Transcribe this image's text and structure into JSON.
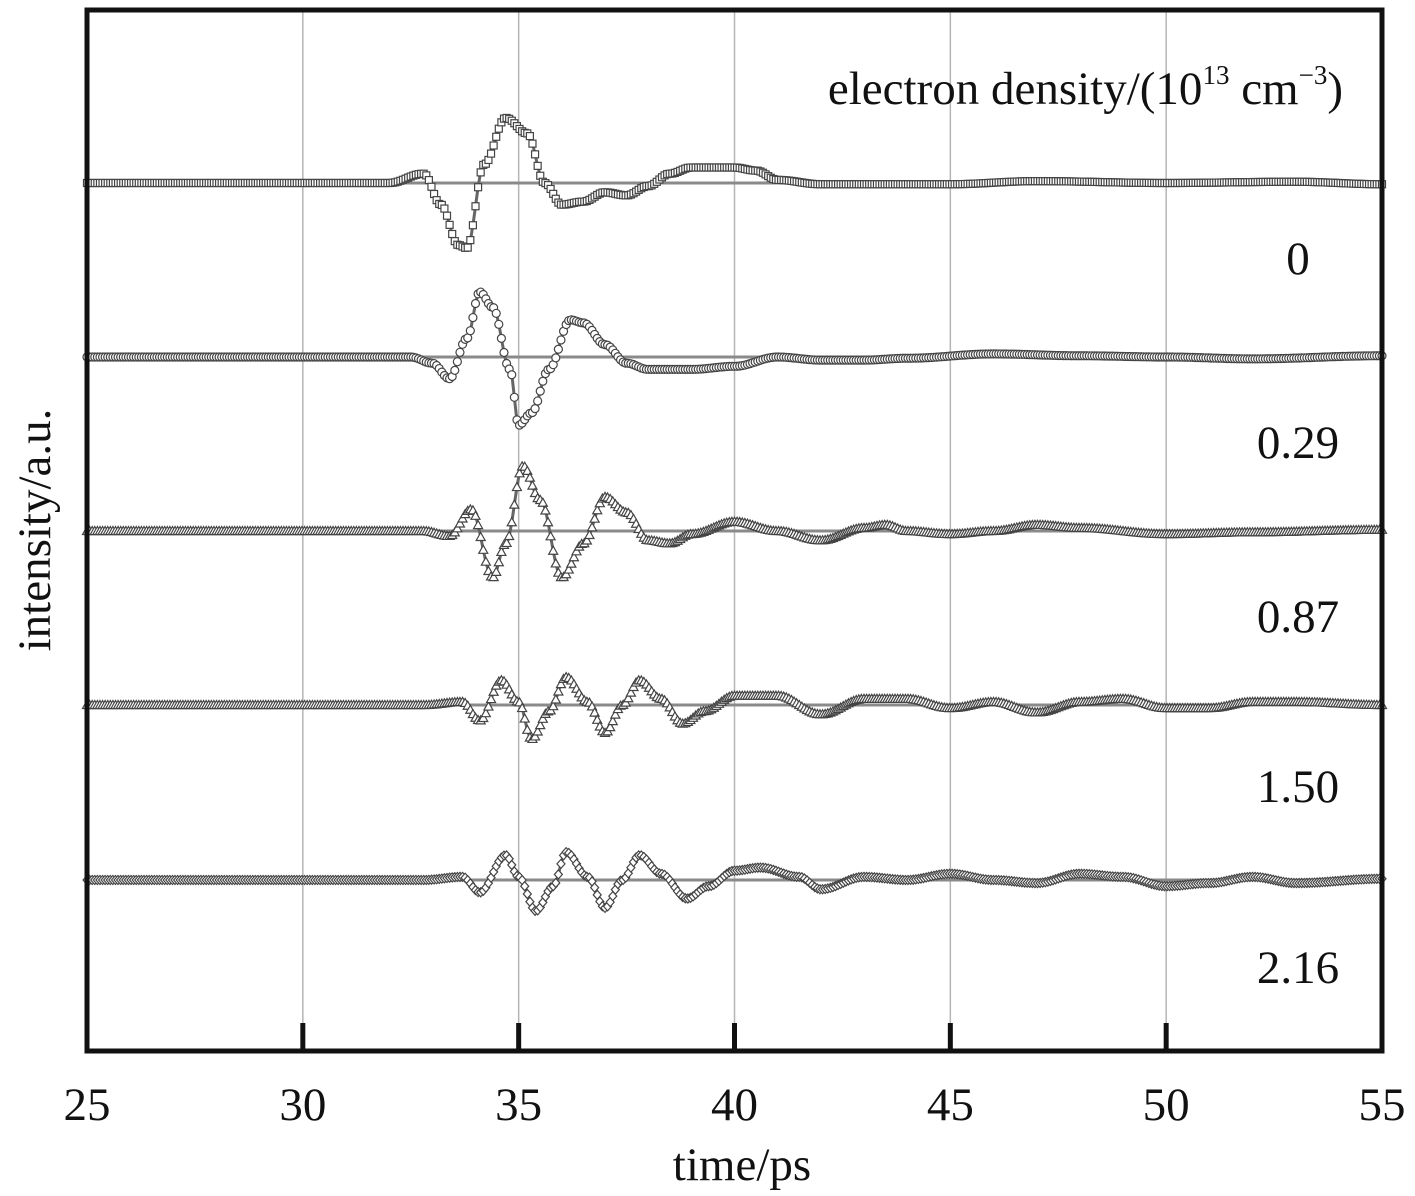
{
  "chart_data": {
    "type": "line",
    "title": "",
    "xlabel": "time/ps",
    "ylabel": "intensity/a.u.",
    "legend_title": {
      "text": "electron density/(10",
      "sup1": "13",
      "mid": " cm",
      "sup2": "−3",
      "end": ")"
    },
    "xlim": [
      25,
      55
    ],
    "x_ticks": [
      "25",
      "30",
      "35",
      "40",
      "45",
      "50",
      "55"
    ],
    "grid": "vertical",
    "series": [
      {
        "name": "0",
        "marker": "square",
        "points": [
          [
            25,
            0
          ],
          [
            32,
            0
          ],
          [
            32.8,
            0.15
          ],
          [
            33.2,
            -0.35
          ],
          [
            33.6,
            -1.0
          ],
          [
            33.8,
            -1.05
          ],
          [
            34.2,
            0.3
          ],
          [
            34.7,
            1.05
          ],
          [
            35.2,
            0.8
          ],
          [
            35.6,
            0.0
          ],
          [
            36.0,
            -0.35
          ],
          [
            36.5,
            -0.3
          ],
          [
            37.0,
            -0.15
          ],
          [
            37.5,
            -0.2
          ],
          [
            38.0,
            -0.05
          ],
          [
            38.5,
            0.15
          ],
          [
            39.0,
            0.25
          ],
          [
            40.0,
            0.25
          ],
          [
            40.5,
            0.2
          ],
          [
            41.0,
            0.05
          ],
          [
            42.0,
            -0.02
          ],
          [
            45.0,
            -0.02
          ],
          [
            47.0,
            0.03
          ],
          [
            50.0,
            0.0
          ],
          [
            53.0,
            0.02
          ],
          [
            55,
            -0.02
          ]
        ]
      },
      {
        "name": "0.29",
        "marker": "circle",
        "points": [
          [
            25,
            0
          ],
          [
            32.5,
            0
          ],
          [
            33.0,
            -0.1
          ],
          [
            33.4,
            -0.35
          ],
          [
            33.8,
            0.3
          ],
          [
            34.1,
            1.05
          ],
          [
            34.4,
            0.8
          ],
          [
            34.8,
            -0.2
          ],
          [
            35.0,
            -1.1
          ],
          [
            35.3,
            -0.9
          ],
          [
            35.7,
            -0.2
          ],
          [
            36.2,
            0.6
          ],
          [
            36.5,
            0.55
          ],
          [
            37.0,
            0.2
          ],
          [
            37.5,
            -0.1
          ],
          [
            38.0,
            -0.2
          ],
          [
            39.0,
            -0.2
          ],
          [
            40.0,
            -0.15
          ],
          [
            41.0,
            0.0
          ],
          [
            42.0,
            -0.05
          ],
          [
            43.0,
            -0.05
          ],
          [
            44.0,
            -0.02
          ],
          [
            46.0,
            0.05
          ],
          [
            48.0,
            0.02
          ],
          [
            50.0,
            0.0
          ],
          [
            52.0,
            -0.03
          ],
          [
            55,
            0.02
          ]
        ]
      },
      {
        "name": "0.87",
        "marker": "triangle",
        "points": [
          [
            25,
            0
          ],
          [
            32.8,
            0
          ],
          [
            33.4,
            -0.08
          ],
          [
            33.9,
            0.35
          ],
          [
            34.4,
            -0.75
          ],
          [
            34.7,
            -0.2
          ],
          [
            35.1,
            1.05
          ],
          [
            35.5,
            0.5
          ],
          [
            36.0,
            -0.75
          ],
          [
            36.5,
            -0.2
          ],
          [
            37.0,
            0.55
          ],
          [
            37.5,
            0.3
          ],
          [
            38.0,
            -0.15
          ],
          [
            38.5,
            -0.2
          ],
          [
            39.0,
            -0.05
          ],
          [
            40.0,
            0.15
          ],
          [
            41.0,
            0.0
          ],
          [
            42.0,
            -0.15
          ],
          [
            43.0,
            0.05
          ],
          [
            43.5,
            0.1
          ],
          [
            44.0,
            0.0
          ],
          [
            45.0,
            -0.05
          ],
          [
            46.0,
            0.0
          ],
          [
            47.0,
            0.1
          ],
          [
            48.0,
            0.05
          ],
          [
            50.0,
            -0.05
          ],
          [
            52.0,
            -0.02
          ],
          [
            55,
            0.02
          ]
        ]
      },
      {
        "name": "1.50",
        "marker": "triangle",
        "points": [
          [
            25,
            0
          ],
          [
            32.8,
            0
          ],
          [
            33.7,
            0.05
          ],
          [
            34.1,
            -0.25
          ],
          [
            34.6,
            0.4
          ],
          [
            35.0,
            0.05
          ],
          [
            35.3,
            -0.55
          ],
          [
            35.7,
            -0.1
          ],
          [
            36.1,
            0.45
          ],
          [
            36.6,
            0.05
          ],
          [
            37.0,
            -0.45
          ],
          [
            37.4,
            0.0
          ],
          [
            37.8,
            0.4
          ],
          [
            38.3,
            0.1
          ],
          [
            38.8,
            -0.3
          ],
          [
            39.3,
            -0.1
          ],
          [
            40.0,
            0.15
          ],
          [
            41.0,
            0.15
          ],
          [
            42.0,
            -0.15
          ],
          [
            43.0,
            0.1
          ],
          [
            44.0,
            0.1
          ],
          [
            45.0,
            -0.05
          ],
          [
            46.0,
            0.05
          ],
          [
            47.0,
            -0.12
          ],
          [
            48.0,
            0.05
          ],
          [
            49.0,
            0.1
          ],
          [
            50.0,
            -0.05
          ],
          [
            51.0,
            -0.05
          ],
          [
            52.0,
            0.05
          ],
          [
            53.0,
            0.05
          ],
          [
            55,
            0.0
          ]
        ]
      },
      {
        "name": "2.16",
        "marker": "diamond",
        "points": [
          [
            25,
            0
          ],
          [
            32.8,
            0
          ],
          [
            33.7,
            0.05
          ],
          [
            34.1,
            -0.2
          ],
          [
            34.7,
            0.4
          ],
          [
            35.0,
            0.05
          ],
          [
            35.4,
            -0.5
          ],
          [
            35.8,
            -0.1
          ],
          [
            36.1,
            0.45
          ],
          [
            36.6,
            0.05
          ],
          [
            37.0,
            -0.45
          ],
          [
            37.4,
            0.0
          ],
          [
            37.8,
            0.4
          ],
          [
            38.3,
            0.1
          ],
          [
            38.9,
            -0.3
          ],
          [
            39.4,
            -0.1
          ],
          [
            40.0,
            0.15
          ],
          [
            40.6,
            0.2
          ],
          [
            41.5,
            0.05
          ],
          [
            42.0,
            -0.15
          ],
          [
            43.0,
            0.05
          ],
          [
            44.0,
            0.0
          ],
          [
            45.0,
            0.1
          ],
          [
            46.0,
            0.0
          ],
          [
            47.0,
            -0.05
          ],
          [
            48.0,
            0.1
          ],
          [
            49.0,
            0.05
          ],
          [
            50.0,
            -0.1
          ],
          [
            51.0,
            -0.05
          ],
          [
            52.0,
            0.05
          ],
          [
            53.0,
            -0.05
          ],
          [
            55,
            0.02
          ]
        ]
      }
    ]
  }
}
